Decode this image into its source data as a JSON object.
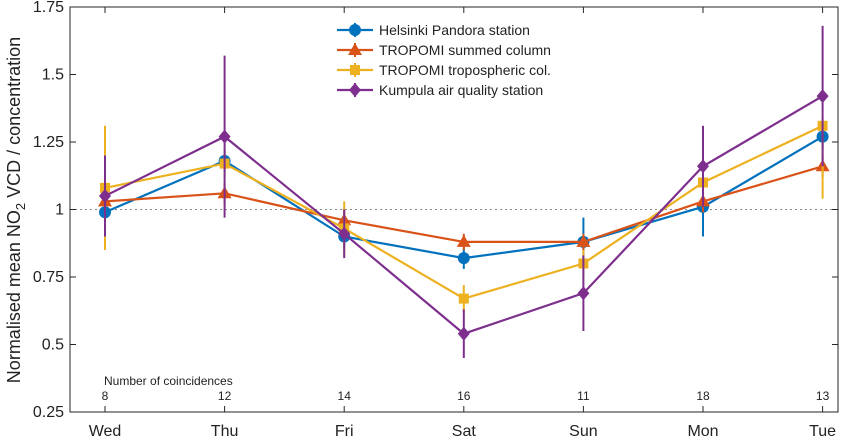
{
  "chart_data": {
    "type": "line",
    "title": "",
    "xlabel": "",
    "ylabel": {
      "prefix": "Normalised mean NO",
      "subscript": "2",
      "suffix": " VCD / concentration"
    },
    "categories": [
      "Wed",
      "Thu",
      "Fri",
      "Sat",
      "Sun",
      "Mon",
      "Tue"
    ],
    "yticks": [
      "0.25",
      "0.5",
      "0.75",
      "1",
      "1.25",
      "1.5",
      "1.75"
    ],
    "ylim": [
      0.25,
      1.75
    ],
    "reference_line": 1,
    "grid": false,
    "legend_position": "top-center",
    "coincidences": {
      "label": "Number of coincidences",
      "values": [
        "8",
        "12",
        "14",
        "16",
        "11",
        "18",
        "13"
      ]
    },
    "series": [
      {
        "name": "Helsinki Pandora station",
        "color": "#0072BD",
        "marker": "circle",
        "values": [
          0.99,
          1.18,
          0.9,
          0.82,
          0.88,
          1.01,
          1.27
        ],
        "err_low": [
          0.95,
          1.14,
          0.86,
          0.78,
          0.79,
          0.9,
          1.22
        ],
        "err_high": [
          1.03,
          1.22,
          0.94,
          0.86,
          0.97,
          1.1,
          1.32
        ]
      },
      {
        "name": "TROPOMI summed column",
        "color": "#D95319",
        "marker": "triangle",
        "values": [
          1.03,
          1.06,
          0.96,
          0.88,
          0.88,
          1.03,
          1.16
        ],
        "err_low": [
          0.99,
          1.02,
          0.92,
          0.85,
          0.85,
          0.99,
          1.12
        ],
        "err_high": [
          1.07,
          1.1,
          1.0,
          0.91,
          0.91,
          1.07,
          1.2
        ]
      },
      {
        "name": "TROPOMI tropospheric col.",
        "color": "#EDB120",
        "marker": "square",
        "values": [
          1.08,
          1.17,
          0.93,
          0.67,
          0.8,
          1.1,
          1.31
        ],
        "err_low": [
          0.85,
          1.12,
          0.83,
          0.62,
          0.75,
          1.02,
          1.04
        ],
        "err_high": [
          1.31,
          1.22,
          1.03,
          0.72,
          0.85,
          1.18,
          1.34
        ]
      },
      {
        "name": "Kumpula air quality station",
        "color": "#7E2F8E",
        "marker": "diamond",
        "values": [
          1.05,
          1.27,
          0.91,
          0.54,
          0.69,
          1.16,
          1.42
        ],
        "err_low": [
          0.9,
          0.97,
          0.82,
          0.45,
          0.55,
          1.01,
          1.16
        ],
        "err_high": [
          1.2,
          1.57,
          1.0,
          0.63,
          0.83,
          1.31,
          1.68
        ]
      }
    ]
  }
}
